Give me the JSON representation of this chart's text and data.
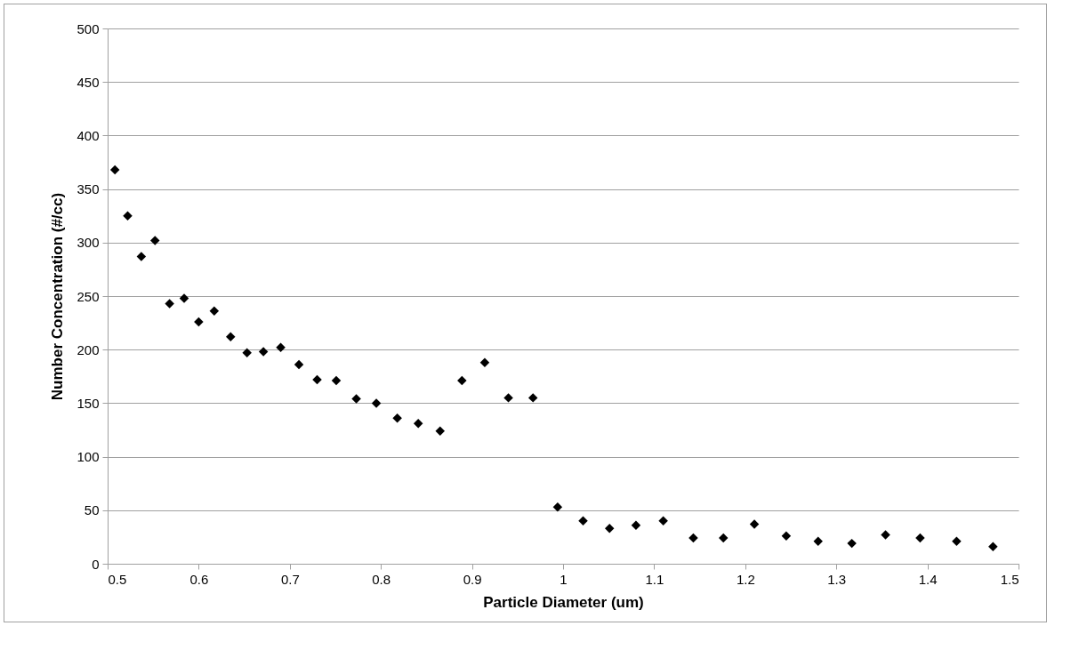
{
  "chart_data": {
    "type": "scatter",
    "xlabel": "Particle Diameter (um)",
    "ylabel": "Number Concentration (#/cc)",
    "x": [
      0.508,
      0.522,
      0.537,
      0.552,
      0.568,
      0.584,
      0.6,
      0.617,
      0.635,
      0.653,
      0.671,
      0.69,
      0.71,
      0.73,
      0.751,
      0.773,
      0.795,
      0.818,
      0.841,
      0.865,
      0.889,
      0.914,
      0.94,
      0.967,
      0.994,
      1.022,
      1.051,
      1.08,
      1.11,
      1.143,
      1.176,
      1.21,
      1.245,
      1.28,
      1.317,
      1.354,
      1.392,
      1.432,
      1.472
    ],
    "series": [
      {
        "color": "#000000",
        "values": [
          368,
          325,
          287,
          302,
          243,
          248,
          226,
          236,
          212,
          197,
          198,
          202,
          186,
          172,
          171,
          154,
          150,
          136,
          131,
          124,
          171,
          188,
          155,
          155,
          53,
          40,
          33,
          36,
          40,
          24,
          24,
          37,
          26,
          21,
          19,
          27,
          24,
          21,
          16
        ]
      }
    ],
    "xlim": [
      0.5,
      1.5
    ],
    "xticks": [
      0.5,
      0.6,
      0.7,
      0.8,
      0.9,
      1,
      1.1,
      1.2,
      1.3,
      1.4,
      1.5
    ],
    "ylim": [
      0,
      500
    ],
    "yticks": [
      0,
      50,
      100,
      150,
      200,
      250,
      300,
      350,
      400,
      450,
      500
    ],
    "grid": "y",
    "marker": "diamond"
  }
}
